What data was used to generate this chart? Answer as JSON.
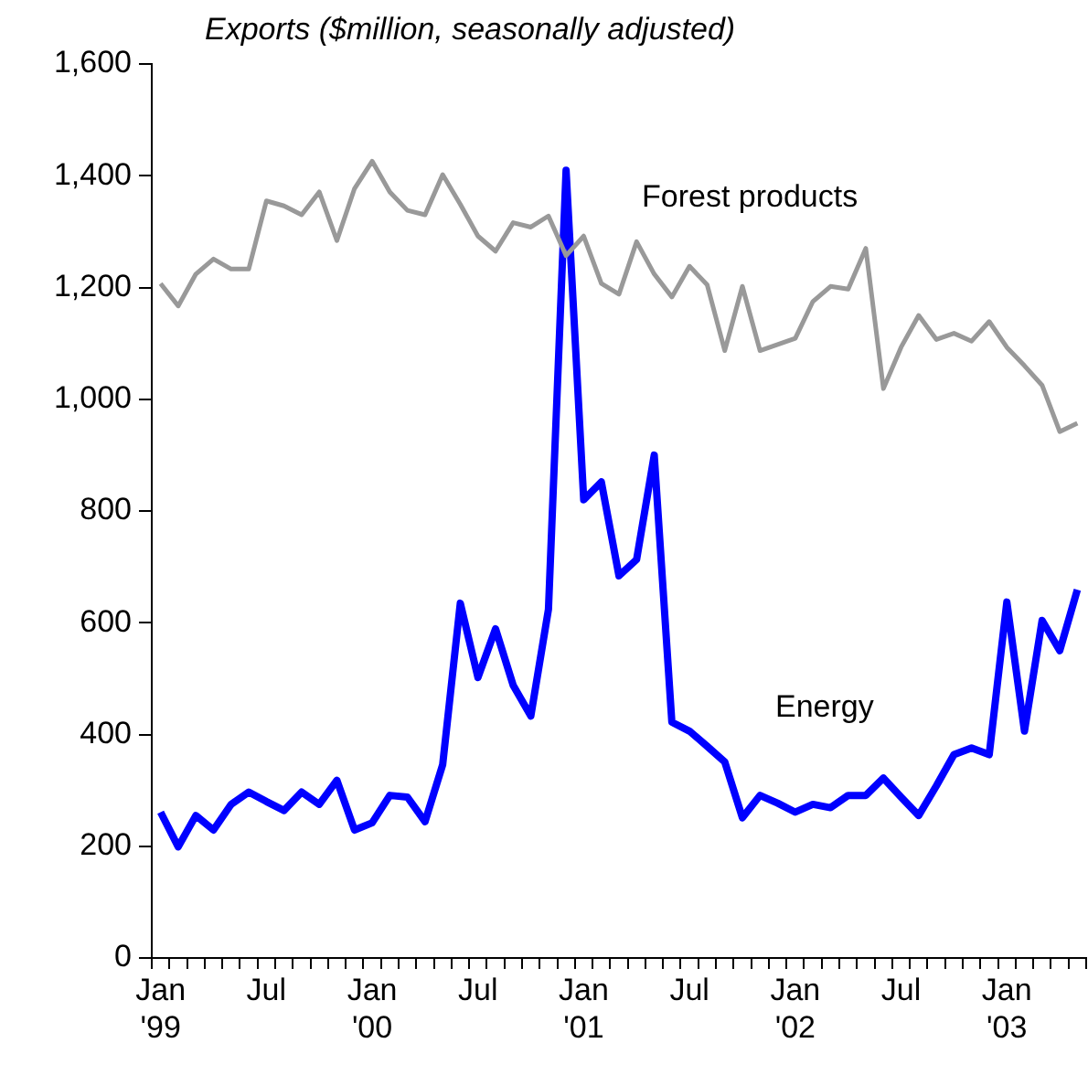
{
  "chart_data": {
    "type": "line",
    "title": "Exports ($million, seasonally adjusted)",
    "categories": [
      "Jan '99",
      null,
      null,
      null,
      null,
      null,
      "Jul",
      null,
      null,
      null,
      null,
      null,
      "Jan '00",
      null,
      null,
      null,
      null,
      null,
      "Jul",
      null,
      null,
      null,
      null,
      null,
      "Jan '01",
      null,
      null,
      null,
      null,
      null,
      "Jul",
      null,
      null,
      null,
      null,
      null,
      "Jan '02",
      null,
      null,
      null,
      null,
      null,
      "Jul",
      null,
      null,
      null,
      null,
      null,
      "Jan '03",
      null,
      null,
      null,
      null
    ],
    "series": [
      {
        "name": "Forest products",
        "color": "#999999",
        "values": [
          1207,
          1167,
          1224,
          1251,
          1233,
          1233,
          1355,
          1346,
          1330,
          1371,
          1284,
          1377,
          1426,
          1371,
          1338,
          1330,
          1402,
          1349,
          1292,
          1265,
          1316,
          1308,
          1328,
          1257,
          1292,
          1207,
          1188,
          1282,
          1224,
          1183,
          1238,
          1205,
          1087,
          1202,
          1087,
          1098,
          1109,
          1175,
          1202,
          1197,
          1270,
          1019,
          1093,
          1150,
          1107,
          1118,
          1104,
          1139,
          1093,
          1060,
          1025,
          942,
          957
        ]
      },
      {
        "name": "Energy",
        "color": "#0000ff",
        "values": [
          261,
          199,
          255,
          229,
          275,
          297,
          280,
          264,
          297,
          275,
          318,
          229,
          242,
          291,
          288,
          244,
          346,
          635,
          502,
          589,
          488,
          433,
          624,
          1410,
          820,
          852,
          684,
          713,
          900,
          422,
          406,
          379,
          351,
          251,
          291,
          277,
          261,
          275,
          269,
          291,
          291,
          322,
          288,
          255,
          308,
          364,
          376,
          364,
          637,
          406,
          604,
          550,
          659
        ]
      }
    ],
    "ylim": [
      0,
      1600
    ],
    "yticks": [
      0,
      200,
      400,
      600,
      800,
      {
        "value": 1000,
        "label": "1,000"
      },
      {
        "value": 1200,
        "label": "1,200"
      },
      {
        "value": 1400,
        "label": "1,400"
      },
      {
        "value": 1600,
        "label": "1,600"
      }
    ],
    "grid": false,
    "legend": false,
    "marker": "none",
    "line_style": "solid"
  }
}
